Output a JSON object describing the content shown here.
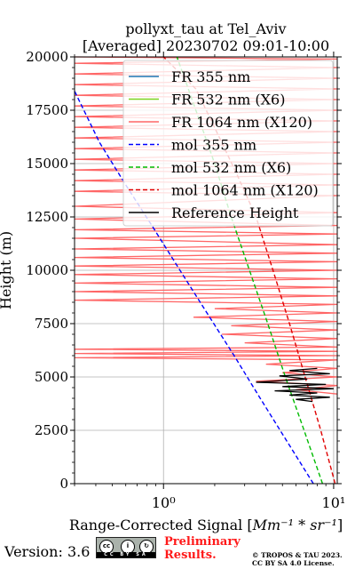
{
  "chart_data": {
    "type": "line",
    "title": "pollyxt_tau at Tel_Aviv",
    "subtitle": "[Averaged] 20230702 09:01-10:00",
    "ylabel": "Height (m)",
    "xlabel_main": "Range-Corrected Signal [",
    "xlabel_math": "Mm⁻¹ * sr⁻¹",
    "xlabel_end": "]",
    "x_scale": "log",
    "xlim": [
      0.3,
      10.5
    ],
    "ylim": [
      0,
      20000
    ],
    "yticks": [
      0,
      2500,
      5000,
      7500,
      10000,
      12500,
      15000,
      17500,
      20000
    ],
    "ytick_labels": [
      "0",
      "2500",
      "5000",
      "7500",
      "10000",
      "12500",
      "15000",
      "17500",
      "20000"
    ],
    "xticks": [
      1,
      10
    ],
    "xtick_labels": [
      "10⁰",
      "10¹"
    ],
    "grid": true,
    "legend_position": "top-right",
    "legend": [
      {
        "label": "FR 355 nm",
        "color": "#1f77b4",
        "dash": "solid"
      },
      {
        "label": "FR 532 nm (X6)",
        "color": "#7ed321",
        "dash": "solid"
      },
      {
        "label": "FR 1064 nm (X120)",
        "color": "#ff6666",
        "dash": "solid"
      },
      {
        "label": "mol 355 nm",
        "color": "#0000ff",
        "dash": "dashed"
      },
      {
        "label": "mol 532 nm (X6)",
        "color": "#00bb00",
        "dash": "dashed"
      },
      {
        "label": "mol 1064 nm (X120)",
        "color": "#e00000",
        "dash": "dashed"
      },
      {
        "label": "Reference Height",
        "color": "#000000",
        "dash": "solid"
      }
    ],
    "series": [
      {
        "name": "mol 355 nm",
        "color": "#0000ff",
        "dash": "dashed",
        "x": [
          7.6,
          5.3,
          3.7,
          2.6,
          1.8,
          1.25,
          0.87,
          0.6,
          0.42,
          0.3
        ],
        "y": [
          0,
          2000,
          4000,
          6000,
          8000,
          10000,
          12000,
          14000,
          16000,
          18400
        ]
      },
      {
        "name": "mol 532 nm (X6)",
        "color": "#00bb00",
        "dash": "dashed",
        "x": [
          8.6,
          6.7,
          5.2,
          4.1,
          3.2,
          2.5,
          2.0,
          1.55,
          1.2
        ],
        "y": [
          0,
          2500,
          5000,
          7500,
          10000,
          12500,
          15000,
          17500,
          20000
        ]
      },
      {
        "name": "mol 1064 nm (X120)",
        "color": "#e00000",
        "dash": "dashed",
        "x": [
          10.2,
          8.4,
          6.8,
          5.5,
          4.4,
          3.5,
          2.7,
          2.05,
          1.55,
          1.0
        ],
        "y": [
          0,
          2500,
          5000,
          7500,
          10000,
          12500,
          14500,
          16500,
          18500,
          20000
        ]
      },
      {
        "name": "FR 1064 nm (X120)",
        "color": "#ff6666",
        "dash": "solid",
        "x": [
          0.3,
          10.5,
          0.3,
          10.5,
          0.3,
          10.5,
          0.3,
          10.5,
          0.3,
          10.5,
          0.3,
          10.5,
          0.3,
          10.5,
          0.3,
          10.5,
          0.3,
          10.5,
          0.3,
          10.5,
          0.3,
          10.5,
          0.3,
          10.5,
          0.3,
          10.5,
          0.3,
          10.5,
          0.3,
          10.5,
          0.3,
          10.5,
          0.3,
          10.5,
          0.3,
          10.5,
          0.3,
          10.5,
          0.3,
          10.5,
          0.3,
          10.5,
          0.3,
          10.5,
          0.3,
          10.5,
          0.3,
          10.5,
          0.3,
          10.5,
          2.0,
          10.5,
          1.5,
          10.5,
          2.5,
          10.5,
          2.2,
          10.5,
          3.0,
          10.5,
          0.3,
          10.5,
          0.3,
          10.5,
          0.3,
          10.5,
          4.0,
          10.5,
          5.0,
          10.5,
          3.5,
          10.5,
          6.0,
          10.5
        ],
        "y": [
          20000,
          19900,
          19700,
          19500,
          19200,
          19000,
          18700,
          18500,
          18200,
          18000,
          17700,
          17500,
          17200,
          17000,
          16700,
          16500,
          16200,
          16000,
          15700,
          15500,
          15200,
          15000,
          14700,
          14500,
          14200,
          14000,
          13700,
          13500,
          13000,
          12700,
          12400,
          12100,
          11900,
          11700,
          11500,
          11200,
          11000,
          10800,
          10600,
          10400,
          10200,
          10000,
          9800,
          9600,
          9400,
          9200,
          9000,
          8800,
          8600,
          8400,
          8200,
          8000,
          7800,
          7600,
          7400,
          7200,
          7000,
          6800,
          6600,
          6400,
          6300,
          6200,
          6100,
          6000,
          5900,
          5800,
          5600,
          5400,
          5200,
          5000,
          4800,
          4600,
          4400,
          4200
        ]
      },
      {
        "name": "Reference Height",
        "color": "#000000",
        "dash": "solid",
        "x": [
          8.0,
          5.5,
          9.5,
          4.8,
          7.0,
          3.5,
          9.0,
          5.0,
          10.0,
          4.5,
          8.0,
          5.5,
          9.5,
          6.0,
          7.5
        ],
        "y": [
          5400,
          5300,
          5150,
          5050,
          4900,
          4750,
          4650,
          4550,
          4450,
          4350,
          4250,
          4150,
          4050,
          3950,
          3850
        ]
      }
    ]
  },
  "footer": {
    "version": "Version: 3.6",
    "license_badge": "CC BY SA",
    "preliminary_line1": "Preliminary",
    "preliminary_line2": "Results.",
    "copyright_line1": "© TROPOS & TAU 2023.",
    "copyright_line2": "CC BY SA 4.0 License."
  }
}
